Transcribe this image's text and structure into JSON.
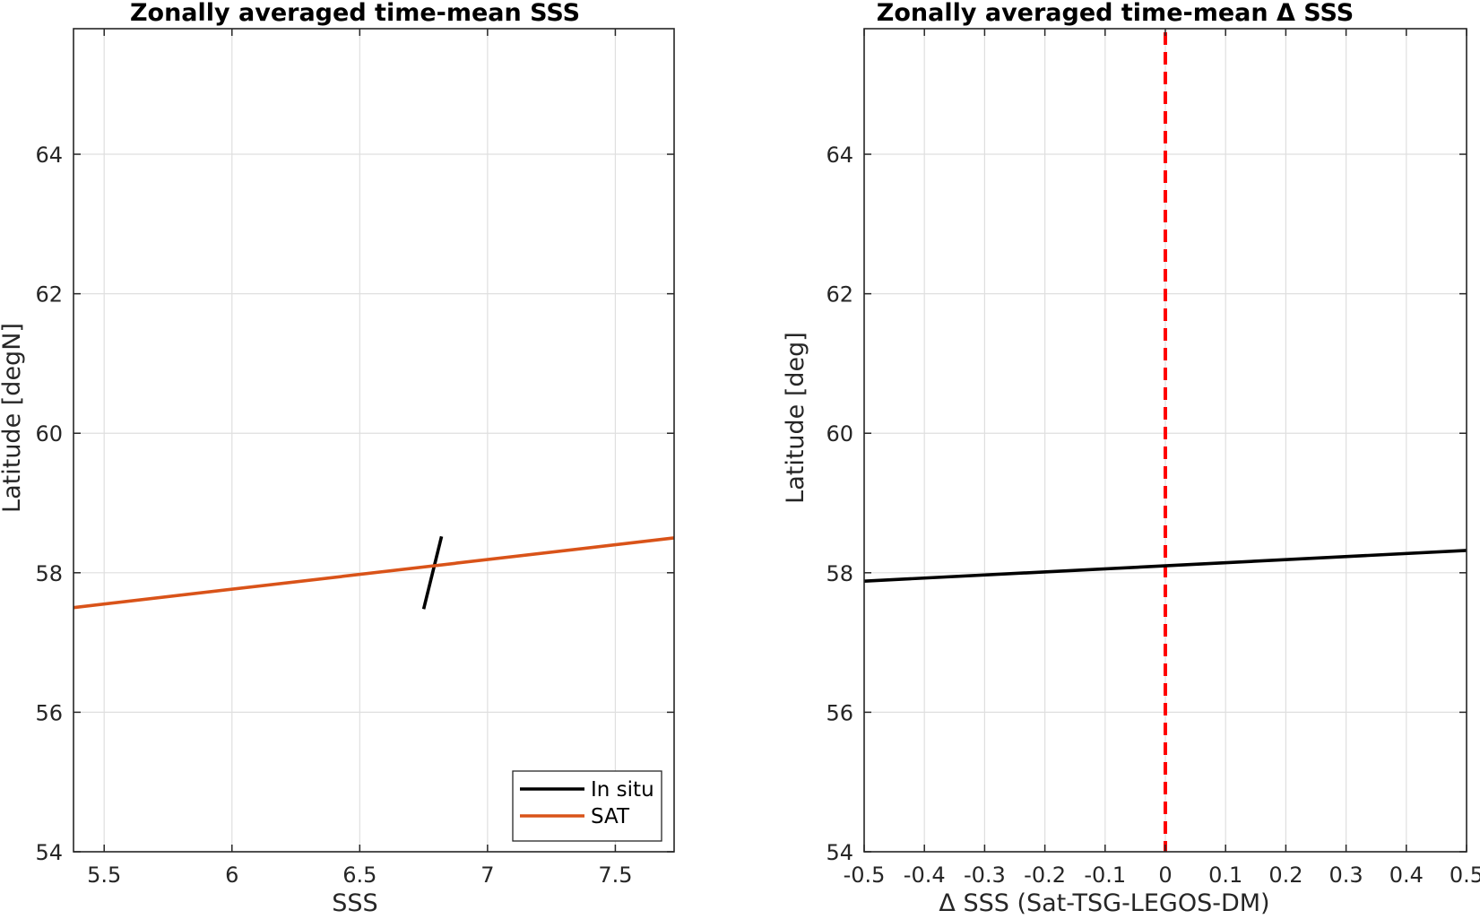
{
  "chart_data": [
    {
      "type": "line",
      "title": "Zonally averaged time-mean SSS",
      "xlabel": "SSS",
      "ylabel": "Latitude [degN]",
      "xlim": [
        5.38,
        7.73
      ],
      "ylim": [
        54,
        65.8
      ],
      "xticks": [
        5.5,
        6,
        6.5,
        7,
        7.5
      ],
      "xtick_labels": [
        "5.5",
        "6",
        "6.5",
        "7",
        "7.5"
      ],
      "yticks": [
        54,
        56,
        58,
        60,
        62,
        64
      ],
      "ytick_labels": [
        "54",
        "56",
        "58",
        "60",
        "62",
        "64"
      ],
      "grid": true,
      "legend_position": "bottom-right",
      "series": [
        {
          "name": "In situ",
          "color": "#000000",
          "x": [
            6.75,
            6.82
          ],
          "y": [
            57.48,
            58.52
          ]
        },
        {
          "name": "SAT",
          "color": "#D95319",
          "x": [
            5.38,
            7.73
          ],
          "y": [
            57.5,
            58.5
          ]
        }
      ]
    },
    {
      "type": "line",
      "title": "Zonally averaged time-mean Δ SSS",
      "xlabel": "Δ SSS (Sat-TSG-LEGOS-DM)",
      "ylabel": "Latitude [deg]",
      "xlim": [
        -0.5,
        0.5
      ],
      "ylim": [
        54,
        65.8
      ],
      "xticks": [
        -0.5,
        -0.4,
        -0.3,
        -0.2,
        -0.1,
        0,
        0.1,
        0.2,
        0.3,
        0.4,
        0.5
      ],
      "xtick_labels": [
        "-0.5",
        "-0.4",
        "-0.3",
        "-0.2",
        "-0.1",
        "0",
        "0.1",
        "0.2",
        "0.3",
        "0.4",
        "0.5"
      ],
      "yticks": [
        54,
        56,
        58,
        60,
        62,
        64
      ],
      "ytick_labels": [
        "54",
        "56",
        "58",
        "60",
        "62",
        "64"
      ],
      "grid": true,
      "series": [
        {
          "color": "#000000",
          "x": [
            -0.5,
            0.5
          ],
          "y": [
            57.88,
            58.32
          ]
        }
      ],
      "reference_line": {
        "x": 0,
        "color": "#FF0000",
        "style": "dashed"
      }
    }
  ]
}
